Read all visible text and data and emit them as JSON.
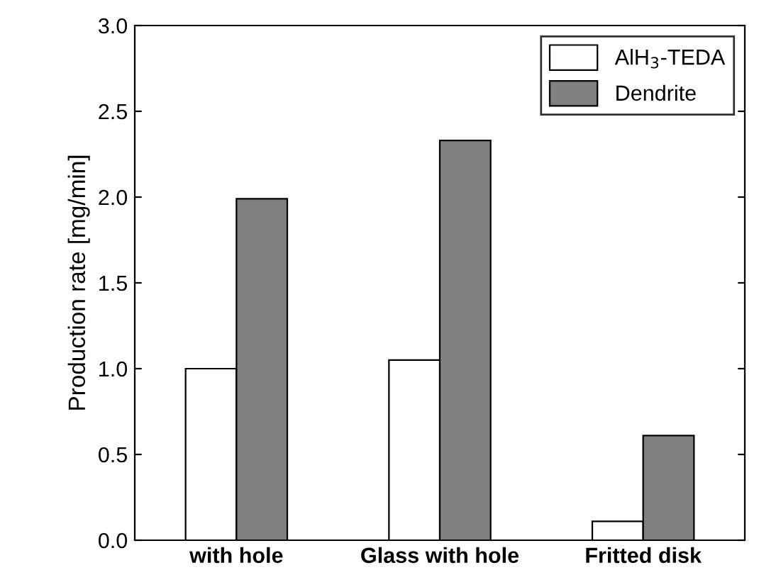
{
  "chart_data": {
    "type": "bar",
    "ylabel": "Production rate [mg/min]",
    "categories": [
      "with hole",
      "Glass with hole",
      "Fritted disk"
    ],
    "series": [
      {
        "name": "AlH$_{3}$-TEDA",
        "color": "#ffffff",
        "values": [
          1.0,
          1.05,
          0.11
        ]
      },
      {
        "name": "Dendrite",
        "color": "#808080",
        "values": [
          1.99,
          2.33,
          0.61
        ]
      }
    ],
    "ylim": [
      0.0,
      3.0
    ],
    "yticks": [
      {
        "value": 0,
        "label": "0.0"
      },
      0.5,
      {
        "value": 1,
        "label": "1.0"
      },
      1.5,
      {
        "value": 2,
        "label": "2.0"
      },
      2.5,
      {
        "value": 3,
        "label": "3.0"
      }
    ],
    "grid": false,
    "legend": "top right"
  }
}
